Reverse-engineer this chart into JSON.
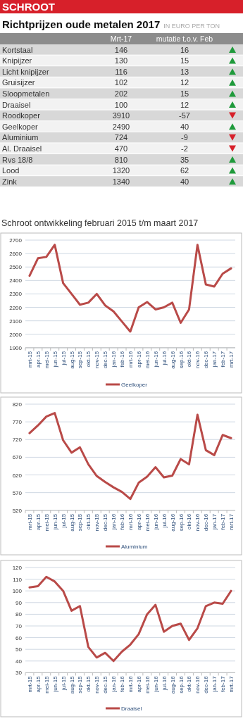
{
  "chart_data": [
    {
      "type": "other",
      "title": "Richtprijzen oude metalen 2017",
      "subtitle": "IN EURO PER TON",
      "annotations": [
        "SCHROOT"
      ],
      "categories": [
        "Kortstaal",
        "Knipijzer",
        "Licht knipijzer",
        "Gruisijzer",
        "Sloopmetalen",
        "Draaisel",
        "Roodkoper",
        "Geelkoper",
        "Aluminium",
        "Al. Draaisel",
        "Rvs 18/8",
        "Lood",
        "Zink"
      ],
      "series": [
        {
          "name": "Mrt-17",
          "colors": [
            "#d8d8d8",
            "#f2f2f2",
            "#d8d8d8",
            "#f2f2f2",
            "#d8d8d8",
            "#f2f2f2",
            "#d8d8d8",
            "#f2f2f2",
            "#d8d8d8",
            "#f2f2f2",
            "#d8d8d8",
            "#f2f2f2",
            "#d8d8d8"
          ],
          "values": [
            146,
            130,
            116,
            102,
            202,
            100,
            3910,
            2490,
            724,
            470,
            810,
            1320,
            1340
          ]
        },
        {
          "name": "mutatie t.o.v. Feb",
          "values": [
            16,
            15,
            13,
            12,
            15,
            12,
            -57,
            40,
            -9,
            -2,
            35,
            62,
            40
          ]
        }
      ],
      "data_labels": true
    },
    {
      "type": "line",
      "title": "Schroot ontwikkeling februari 2015 t/m maart 2017",
      "categories": [
        "mrt-15",
        "apr-15",
        "mei-15",
        "jun-15",
        "jul-15",
        "aug-15",
        "sep-15",
        "okt-15",
        "nov-15",
        "dec-15",
        "jan-16",
        "feb-16",
        "mrt-16",
        "apr-16",
        "mei-16",
        "jun-16",
        "jul-16",
        "aug-16",
        "sep-16",
        "okt-16",
        "nov-16",
        "dec-16",
        "jan-17",
        "feb-17",
        "mrt-17"
      ],
      "series": [
        {
          "name": "Geelkoper",
          "color": "#b94a48",
          "values": [
            2435,
            2565,
            2575,
            2665,
            2380,
            2300,
            2220,
            2235,
            2300,
            2215,
            2170,
            2095,
            2020,
            2200,
            2240,
            2185,
            2200,
            2235,
            2085,
            2185,
            2665,
            2370,
            2355,
            2450,
            2490
          ]
        }
      ],
      "ylim": [
        1900,
        2700
      ],
      "yticks": [
        1900,
        2000,
        2100,
        2200,
        2300,
        2400,
        2500,
        2600,
        2700
      ],
      "grid": "y",
      "legend": "bottom"
    },
    {
      "type": "line",
      "categories": [
        "mrt-15",
        "apr-15",
        "mei-15",
        "jun-15",
        "jul-15",
        "aug-15",
        "sep-15",
        "okt-15",
        "nov-15",
        "dec-15",
        "jan-16",
        "feb-16",
        "mrt-16",
        "apr-16",
        "mei-16",
        "jun-16",
        "jul-16",
        "aug-16",
        "sep-16",
        "okt-16",
        "nov-16",
        "dec-16",
        "jan-17",
        "feb-17",
        "mrt-17"
      ],
      "series": [
        {
          "name": "Aluminium",
          "color": "#b94a48",
          "values": [
            738,
            760,
            785,
            795,
            718,
            683,
            698,
            650,
            617,
            600,
            585,
            572,
            552,
            598,
            615,
            642,
            613,
            618,
            665,
            650,
            790,
            690,
            676,
            733,
            724
          ]
        }
      ],
      "ylim": [
        520,
        820
      ],
      "yticks": [
        520,
        570,
        620,
        670,
        720,
        770,
        820
      ],
      "grid": "y",
      "legend": "bottom"
    },
    {
      "type": "line",
      "categories": [
        "mrt-15",
        "apr-15",
        "mei-15",
        "jun-15",
        "jul-15",
        "aug-15",
        "sep-15",
        "okt-15",
        "nov-15",
        "dec-15",
        "jan-16",
        "feb-16",
        "mrt-16",
        "apr-16",
        "mei-16",
        "jun-16",
        "jul-16",
        "aug-16",
        "sep-16",
        "okt-16",
        "nov-16",
        "dec-16",
        "jan-17",
        "feb-17",
        "mrt-17"
      ],
      "series": [
        {
          "name": "Draaisel",
          "color": "#b94a48",
          "values": [
            103,
            104,
            112,
            108,
            100,
            83,
            87,
            52,
            43,
            47,
            40,
            48,
            54,
            63,
            80,
            88,
            65,
            70,
            72,
            58,
            68,
            87,
            90,
            89,
            100
          ]
        }
      ],
      "ylim": [
        30,
        120
      ],
      "yticks": [
        30,
        40,
        50,
        60,
        70,
        80,
        90,
        100,
        110,
        120
      ],
      "grid": "y",
      "legend": "bottom"
    }
  ]
}
